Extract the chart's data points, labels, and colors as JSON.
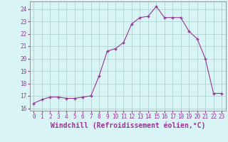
{
  "x": [
    0,
    1,
    2,
    3,
    4,
    5,
    6,
    7,
    8,
    9,
    10,
    11,
    12,
    13,
    14,
    15,
    16,
    17,
    18,
    19,
    20,
    21,
    22,
    23
  ],
  "y": [
    16.4,
    16.7,
    16.9,
    16.9,
    16.8,
    16.8,
    16.9,
    17.0,
    18.6,
    20.6,
    20.8,
    21.3,
    22.8,
    23.3,
    23.4,
    24.2,
    23.3,
    23.3,
    23.3,
    22.2,
    21.6,
    20.0,
    17.2,
    17.2
  ],
  "line_color": "#993399",
  "marker": "+",
  "bg_color": "#d8f4f4",
  "grid_color": "#aacccc",
  "xlabel": "Windchill (Refroidissement éolien,°C)",
  "ylabel": "",
  "title": "",
  "xlim": [
    -0.5,
    23.5
  ],
  "ylim": [
    15.8,
    24.6
  ],
  "yticks": [
    16,
    17,
    18,
    19,
    20,
    21,
    22,
    23,
    24
  ],
  "xticks": [
    0,
    1,
    2,
    3,
    4,
    5,
    6,
    7,
    8,
    9,
    10,
    11,
    12,
    13,
    14,
    15,
    16,
    17,
    18,
    19,
    20,
    21,
    22,
    23
  ],
  "label_color": "#993399",
  "tick_label_fontsize": 5.5,
  "xlabel_fontsize": 7.0,
  "spine_color": "#888888",
  "linewidth": 0.8,
  "markersize": 3.5,
  "markeredgewidth": 1.0
}
